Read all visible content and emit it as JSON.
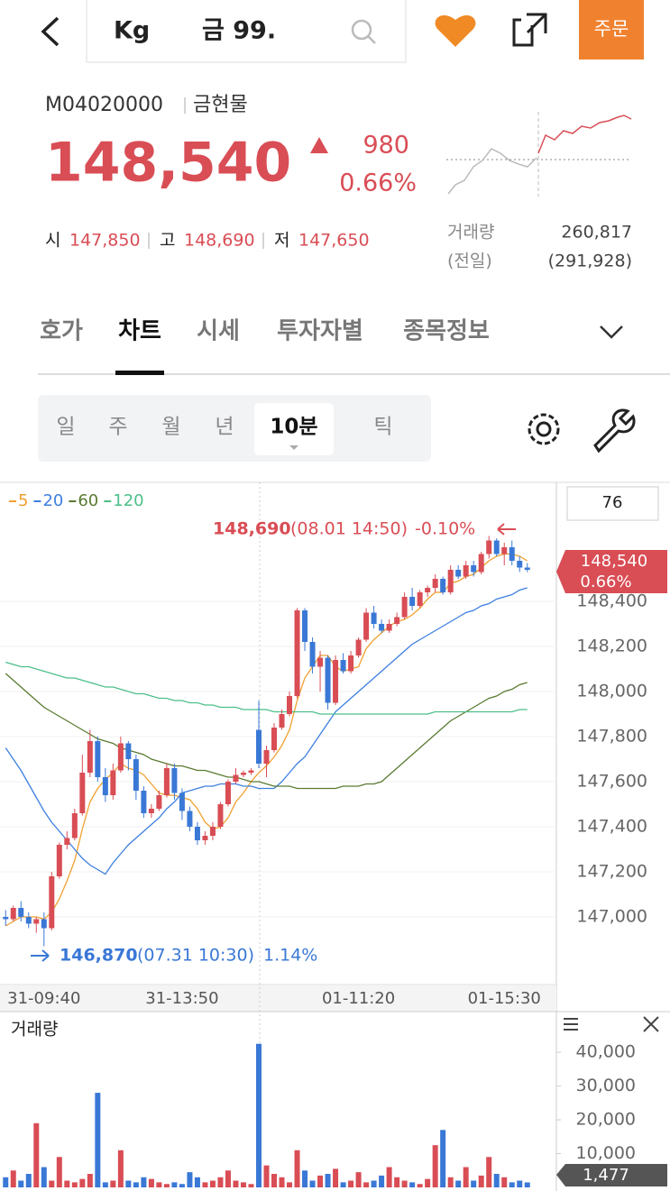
{
  "header": {
    "search_left": "Kg",
    "search_right": "금 99.",
    "order_button": "주문"
  },
  "quote": {
    "code": "M04020000",
    "name": "금현물",
    "price": "148,540",
    "change": "980",
    "change_rate": "0.66%",
    "open_label": "시",
    "open": "147,850",
    "high_label": "고",
    "high": "148,690",
    "low_label": "저",
    "low": "147,650",
    "volume_label": "거래량",
    "volume": "260,817",
    "prev_label": "(전일)",
    "prev_volume": "(291,928)"
  },
  "tabs": [
    "호가",
    "차트",
    "시세",
    "투자자별",
    "종목정보"
  ],
  "periods": [
    "일",
    "주",
    "월",
    "년",
    "10분",
    "틱"
  ],
  "chart_data": [
    {
      "type": "candlestick",
      "categories": [
        null,
        null,
        null,
        null,
        null,
        "31-09:40",
        null,
        null,
        null,
        null,
        null,
        null,
        null,
        null,
        null,
        null,
        null,
        null,
        null,
        null,
        null,
        null,
        null,
        "31-13:50",
        null,
        null,
        null,
        null,
        null,
        null,
        null,
        null,
        null,
        null,
        null,
        null,
        null,
        null,
        null,
        null,
        null,
        null,
        null,
        null,
        null,
        null,
        "01-11:20",
        null,
        null,
        null,
        null,
        null,
        null,
        null,
        null,
        null,
        null,
        null,
        null,
        null,
        null,
        null,
        null,
        null,
        null,
        "01-15:30",
        null,
        null,
        null
      ],
      "ohlc": [
        [
          147000,
          147030,
          146960,
          146990
        ],
        [
          146990,
          147050,
          146980,
          147040
        ],
        [
          147040,
          147070,
          146980,
          147000
        ],
        [
          147000,
          147020,
          146950,
          146970
        ],
        [
          146970,
          147000,
          146930,
          146990
        ],
        [
          146990,
          147020,
          146870,
          146950
        ],
        [
          146950,
          147200,
          146940,
          147180
        ],
        [
          147180,
          147330,
          147170,
          147320
        ],
        [
          147320,
          147380,
          147300,
          147350
        ],
        [
          147350,
          147480,
          147340,
          147460
        ],
        [
          147460,
          147720,
          147450,
          147640
        ],
        [
          147640,
          147830,
          147620,
          147780
        ],
        [
          147780,
          147800,
          147600,
          147620
        ],
        [
          147620,
          147660,
          147510,
          147540
        ],
        [
          147540,
          147680,
          147520,
          147650
        ],
        [
          147650,
          147800,
          147640,
          147770
        ],
        [
          147770,
          147780,
          147650,
          147700
        ],
        [
          147700,
          147720,
          147520,
          147560
        ],
        [
          147560,
          147580,
          147440,
          147460
        ],
        [
          147460,
          147500,
          147440,
          147480
        ],
        [
          147480,
          147560,
          147470,
          147540
        ],
        [
          147540,
          147680,
          147530,
          147660
        ],
        [
          147660,
          147680,
          147520,
          147550
        ],
        [
          147550,
          147570,
          147430,
          147470
        ],
        [
          147470,
          147490,
          147380,
          147400
        ],
        [
          147400,
          147420,
          147320,
          147340
        ],
        [
          147340,
          147380,
          147320,
          147360
        ],
        [
          147360,
          147420,
          147340,
          147400
        ],
        [
          147400,
          147510,
          147390,
          147500
        ],
        [
          147500,
          147610,
          147490,
          147600
        ],
        [
          147600,
          147660,
          147590,
          147630
        ],
        [
          147630,
          147650,
          147620,
          147640
        ],
        [
          147640,
          147660,
          147630,
          147650
        ],
        [
          147830,
          147960,
          147660,
          147680
        ],
        [
          147680,
          147760,
          147620,
          147740
        ],
        [
          147740,
          147860,
          147730,
          147840
        ],
        [
          147840,
          147920,
          147830,
          147900
        ],
        [
          147900,
          148000,
          147890,
          147980
        ],
        [
          147980,
          148370,
          147970,
          148360
        ],
        [
          148360,
          148370,
          148180,
          148220
        ],
        [
          148220,
          148240,
          148080,
          148110
        ],
        [
          148110,
          148180,
          148000,
          148150
        ],
        [
          148150,
          148160,
          147920,
          147950
        ],
        [
          147950,
          148160,
          147940,
          148140
        ],
        [
          148140,
          148170,
          148080,
          148090
        ],
        [
          148090,
          148180,
          148080,
          148160
        ],
        [
          148160,
          148240,
          148150,
          148230
        ],
        [
          148230,
          148370,
          148220,
          148350
        ],
        [
          148350,
          148380,
          148280,
          148300
        ],
        [
          148300,
          148320,
          148260,
          148270
        ],
        [
          148270,
          148320,
          148260,
          148300
        ],
        [
          148300,
          148350,
          148290,
          148330
        ],
        [
          148330,
          148440,
          148320,
          148420
        ],
        [
          148420,
          148460,
          148360,
          148380
        ],
        [
          148380,
          148450,
          148370,
          148440
        ],
        [
          148440,
          148470,
          148420,
          148460
        ],
        [
          148460,
          148520,
          148440,
          148500
        ],
        [
          148500,
          148510,
          148430,
          148440
        ],
        [
          148440,
          148560,
          148430,
          148540
        ],
        [
          148540,
          148560,
          148500,
          148510
        ],
        [
          148510,
          148580,
          148500,
          148560
        ],
        [
          148560,
          148580,
          148510,
          148530
        ],
        [
          148530,
          148620,
          148520,
          148610
        ],
        [
          148610,
          148690,
          148590,
          148670
        ],
        [
          148670,
          148680,
          148600,
          148610
        ],
        [
          148610,
          148660,
          148560,
          148640
        ],
        [
          148640,
          148670,
          148560,
          148580
        ],
        [
          148580,
          148600,
          148530,
          148550
        ],
        [
          148550,
          148570,
          148530,
          148540
        ]
      ],
      "up_color": "#d94d55",
      "down_color": "#3a78d6",
      "series": [
        {
          "name": "5",
          "color": "#f0a030",
          "values": [
            146960,
            146980,
            147000,
            147000,
            147000,
            146990,
            147020,
            147080,
            147160,
            147250,
            147390,
            147510,
            147570,
            147610,
            147640,
            147680,
            147660,
            147650,
            147630,
            147590,
            147550,
            147540,
            147540,
            147530,
            147520,
            147480,
            147420,
            147390,
            147400,
            147440,
            147510,
            147550,
            147600,
            147640,
            147670,
            147710,
            147760,
            147830,
            147960,
            148060,
            148110,
            148160,
            148160,
            148110,
            148090,
            148100,
            148110,
            148190,
            148230,
            148260,
            148290,
            148310,
            148320,
            148340,
            148370,
            148410,
            148440,
            148440,
            148480,
            148490,
            148510,
            148520,
            148550,
            148580,
            148600,
            148610,
            148610,
            148600,
            148580
          ]
        },
        {
          "name": "20",
          "color": "#3d7fe0",
          "values": [
            147750,
            147700,
            147650,
            147590,
            147530,
            147470,
            147420,
            147380,
            147340,
            147300,
            147260,
            147230,
            147210,
            147190,
            147240,
            147280,
            147320,
            147350,
            147380,
            147410,
            147440,
            147480,
            147510,
            147550,
            147560,
            147570,
            147580,
            147580,
            147590,
            147590,
            147590,
            147580,
            147580,
            147570,
            147570,
            147570,
            147600,
            147640,
            147680,
            147710,
            147760,
            147810,
            147860,
            147910,
            147940,
            147970,
            148000,
            148030,
            148060,
            148090,
            148120,
            148150,
            148180,
            148210,
            148230,
            148250,
            148270,
            148290,
            148310,
            148330,
            148350,
            148360,
            148380,
            148390,
            148410,
            148420,
            148430,
            148450,
            148460
          ]
        },
        {
          "name": "60",
          "color": "#5a7a30",
          "values": [
            148080,
            148050,
            148020,
            147990,
            147960,
            147930,
            147910,
            147890,
            147870,
            147850,
            147830,
            147810,
            147790,
            147780,
            147770,
            147750,
            147740,
            147730,
            147720,
            147700,
            147690,
            147680,
            147670,
            147670,
            147660,
            147650,
            147650,
            147640,
            147630,
            147620,
            147620,
            147610,
            147600,
            147600,
            147590,
            147580,
            147580,
            147580,
            147570,
            147570,
            147570,
            147570,
            147570,
            147570,
            147580,
            147580,
            147580,
            147590,
            147590,
            147600,
            147630,
            147660,
            147690,
            147720,
            147750,
            147780,
            147810,
            147840,
            147870,
            147890,
            147910,
            147930,
            147950,
            147970,
            147980,
            148000,
            148010,
            148030,
            148040
          ]
        },
        {
          "name": "120",
          "color": "#4cbf8a",
          "values": [
            148130,
            148120,
            148110,
            148110,
            148100,
            148090,
            148080,
            148070,
            148060,
            148060,
            148050,
            148040,
            148030,
            148020,
            148020,
            148010,
            148000,
            147990,
            147990,
            147980,
            147970,
            147970,
            147960,
            147960,
            147950,
            147950,
            147940,
            147940,
            147930,
            147930,
            147930,
            147920,
            147920,
            147920,
            147920,
            147910,
            147910,
            147910,
            147910,
            147910,
            147910,
            147900,
            147900,
            147900,
            147900,
            147900,
            147900,
            147900,
            147900,
            147900,
            147900,
            147900,
            147900,
            147900,
            147900,
            147900,
            147910,
            147910,
            147910,
            147910,
            147910,
            147910,
            147910,
            147910,
            147910,
            147910,
            147910,
            147920,
            147920
          ]
        }
      ],
      "ylim": [
        146700,
        148930
      ],
      "yticks": [
        {
          "value": 147000,
          "label": "147,000"
        },
        {
          "value": 147200,
          "label": "147,200"
        },
        {
          "value": 147400,
          "label": "147,400"
        },
        {
          "value": 147600,
          "label": "147,600"
        },
        {
          "value": 147800,
          "label": "147,800"
        },
        {
          "value": 148000,
          "label": "148,000"
        },
        {
          "value": 148200,
          "label": "148,200"
        },
        {
          "value": 148400,
          "label": "148,400"
        }
      ],
      "grid": true,
      "high_annotation": {
        "price": "148,690",
        "time": "(08.01 14:50)",
        "change": "-0.10%"
      },
      "low_annotation": {
        "price": "146,870",
        "time": "(07.31 10:30)",
        "change": "1.14%"
      },
      "current_price": "148,540",
      "current_change": "0.66%",
      "setting_box": "76"
    },
    {
      "type": "bar",
      "title": "거래량",
      "values": [
        3000,
        5000,
        2000,
        4000,
        19000,
        6000,
        2000,
        9000,
        2000,
        1500,
        2500,
        4000,
        28000,
        1500,
        2000,
        11000,
        2000,
        1500,
        3000,
        2500,
        1500,
        1000,
        1500,
        1000,
        4500,
        3000,
        1500,
        2000,
        3000,
        5000,
        2000,
        1500,
        1000,
        42500,
        6500,
        4000,
        3000,
        1500,
        11000,
        5000,
        2000,
        3500,
        4000,
        5500,
        1500,
        2000,
        4500,
        1500,
        2000,
        3500,
        6000,
        3000,
        2000,
        1500,
        1000,
        2500,
        12500,
        17000,
        3000,
        2000,
        6000,
        2000,
        3500,
        9000,
        4000,
        3000,
        1500,
        2000,
        1477
      ],
      "ylim": [
        0,
        43500
      ],
      "yticks": [
        {
          "value": 10000,
          "label": "10,000"
        },
        {
          "value": 20000,
          "label": "20,000"
        },
        {
          "value": 30000,
          "label": "30,000"
        },
        {
          "value": 40000,
          "label": "40,000"
        }
      ],
      "current_label": "1,477"
    }
  ]
}
